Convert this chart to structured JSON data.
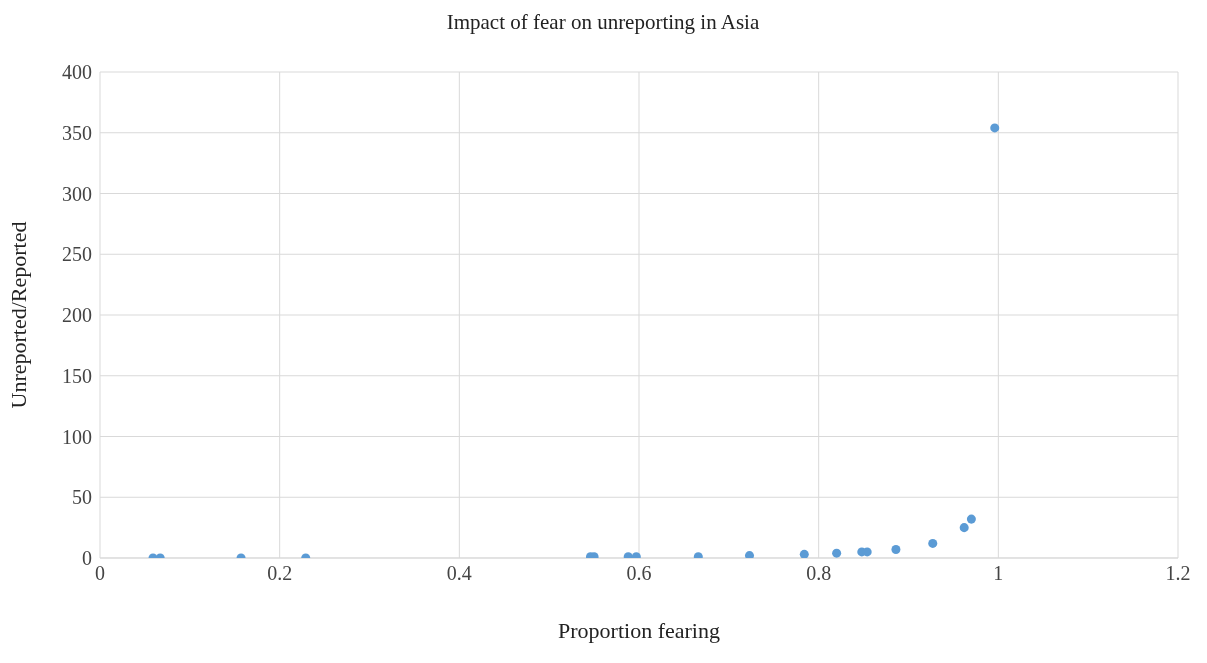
{
  "chart_data": {
    "type": "scatter",
    "title": "Impact of fear on unreporting in Asia",
    "xlabel": "Proportion fearing",
    "ylabel": "Unreported/Reported",
    "x": [
      0.059,
      0.067,
      0.157,
      0.229,
      0.546,
      0.55,
      0.588,
      0.597,
      0.666,
      0.723,
      0.784,
      0.82,
      0.848,
      0.854,
      0.886,
      0.927,
      0.962,
      0.97,
      0.996
    ],
    "series": [
      {
        "color": "#5b9bd5",
        "values": [
          0,
          0,
          0,
          0,
          1,
          1,
          1,
          1,
          1,
          2,
          3,
          4,
          5,
          5,
          7,
          12,
          25,
          32,
          354
        ]
      }
    ],
    "xlim": [
      0,
      1.2
    ],
    "xticks": [
      0,
      0.2,
      0.4,
      0.6,
      0.8,
      1,
      1.2
    ],
    "ylim": [
      0,
      400
    ],
    "yticks": [
      0,
      50,
      100,
      150,
      200,
      250,
      300,
      350,
      400
    ],
    "grid": true,
    "marker": "circle",
    "legend": false
  }
}
